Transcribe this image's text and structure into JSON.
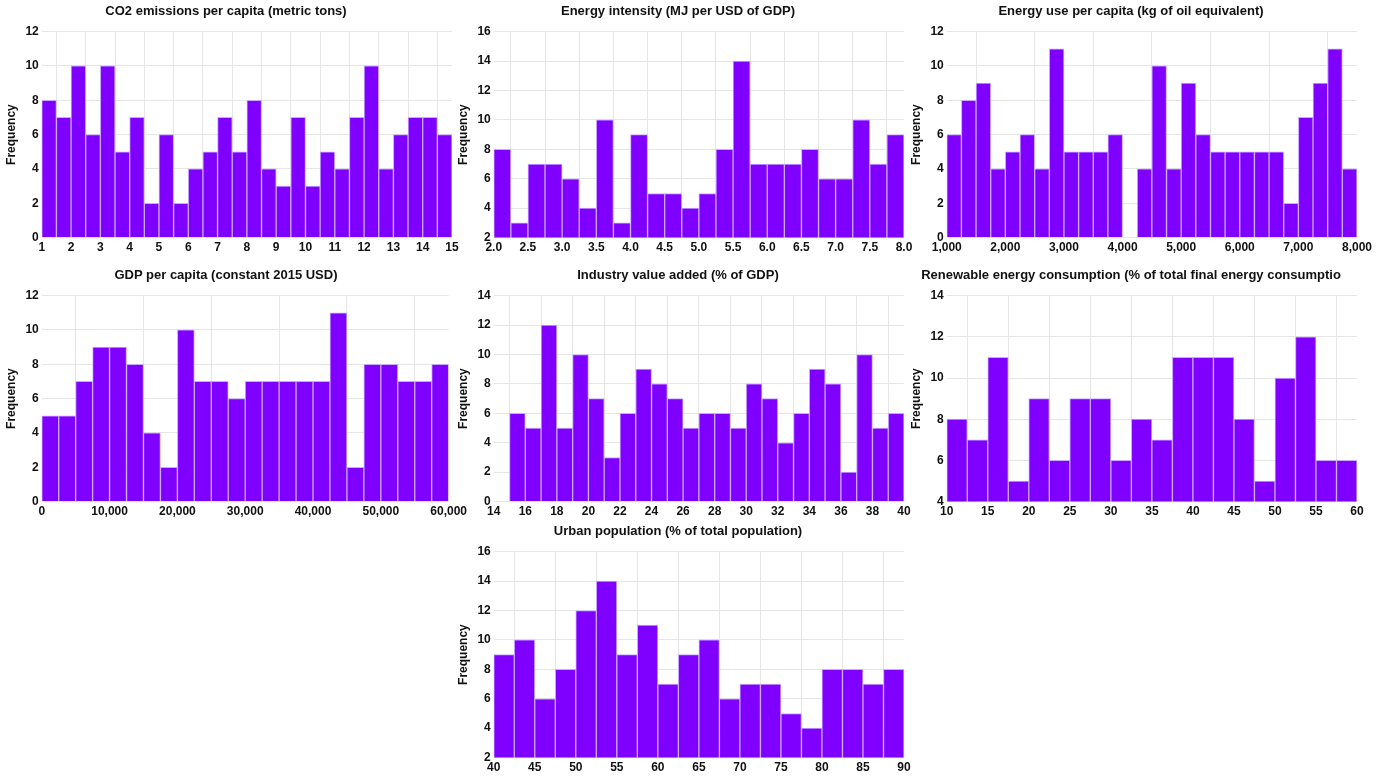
{
  "chart_data": [
    {
      "type": "histogram",
      "title": "CO2 emissions per capita (metric tons)",
      "ylabel": "Frequency",
      "color": "#7f00ff",
      "grid": true,
      "bins": [
        1,
        1.5,
        2,
        2.5,
        3,
        3.5,
        4,
        4.5,
        5,
        5.5,
        6,
        6.5,
        7,
        7.5,
        8,
        8.5,
        9,
        9.5,
        10,
        10.5,
        11,
        11.5,
        12,
        12.5,
        13,
        13.5,
        14,
        14.5,
        15
      ],
      "values": [
        8,
        7,
        10,
        6,
        10,
        5,
        7,
        2,
        6,
        2,
        4,
        5,
        7,
        5,
        8,
        4,
        3,
        7,
        3,
        5,
        4,
        7,
        10,
        4,
        6,
        7,
        7,
        6
      ],
      "xlim": [
        1,
        15
      ],
      "xticks": [
        1,
        2,
        3,
        4,
        5,
        6,
        7,
        8,
        9,
        10,
        11,
        12,
        13,
        14,
        15
      ],
      "ylim": [
        0,
        12
      ],
      "yticks": [
        0,
        2,
        4,
        6,
        8,
        10,
        12
      ]
    },
    {
      "type": "histogram",
      "title": "Energy intensity (MJ per USD of GDP)",
      "ylabel": "Frequency",
      "color": "#7f00ff",
      "grid": true,
      "bins": [
        2,
        2.25,
        2.5,
        2.75,
        3,
        3.25,
        3.5,
        3.75,
        4,
        4.25,
        4.5,
        4.75,
        5,
        5.25,
        5.5,
        5.75,
        6,
        6.25,
        6.5,
        6.75,
        7,
        7.25,
        7.5,
        7.75,
        8
      ],
      "values": [
        8,
        3,
        7,
        7,
        6,
        4,
        10,
        3,
        9,
        5,
        5,
        4,
        5,
        8,
        14,
        7,
        7,
        7,
        8,
        6,
        6,
        10,
        7,
        9
      ],
      "xlim": [
        2,
        8
      ],
      "xticks": [
        {
          "value": 2,
          "label": "2.0"
        },
        2.5,
        {
          "value": 3,
          "label": "3.0"
        },
        3.5,
        {
          "value": 4,
          "label": "4.0"
        },
        4.5,
        {
          "value": 5,
          "label": "5.0"
        },
        5.5,
        {
          "value": 6,
          "label": "6.0"
        },
        6.5,
        {
          "value": 7,
          "label": "7.0"
        },
        7.5,
        {
          "value": 8,
          "label": "8.0"
        }
      ],
      "ylim": [
        2,
        16
      ],
      "yticks": [
        2,
        4,
        6,
        8,
        10,
        12,
        14,
        16
      ]
    },
    {
      "type": "histogram",
      "title": "Energy use per capita (kg of oil equivalent)",
      "ylabel": "Frequency",
      "color": "#7f00ff",
      "grid": true,
      "bins": [
        1000,
        1250,
        1500,
        1750,
        2000,
        2250,
        2500,
        2750,
        3000,
        3250,
        3500,
        3750,
        4000,
        4250,
        4500,
        4750,
        5000,
        5250,
        5500,
        5750,
        6000,
        6250,
        6500,
        6750,
        7000,
        7250,
        7500,
        7750,
        8000
      ],
      "values": [
        6,
        8,
        9,
        4,
        5,
        6,
        4,
        11,
        5,
        5,
        5,
        6,
        0,
        4,
        10,
        4,
        9,
        6,
        5,
        5,
        5,
        5,
        5,
        2,
        7,
        9,
        11,
        4
      ],
      "xlim": [
        1000,
        8000
      ],
      "xticks": [
        {
          "value": 1000,
          "label": "1,000"
        },
        {
          "value": 2000,
          "label": "2,000"
        },
        {
          "value": 3000,
          "label": "3,000"
        },
        {
          "value": 4000,
          "label": "4,000"
        },
        {
          "value": 5000,
          "label": "5,000"
        },
        {
          "value": 6000,
          "label": "6,000"
        },
        {
          "value": 7000,
          "label": "7,000"
        },
        {
          "value": 8000,
          "label": "8,000"
        }
      ],
      "ylim": [
        0,
        12
      ],
      "yticks": [
        0,
        2,
        4,
        6,
        8,
        10,
        12
      ]
    },
    {
      "type": "histogram",
      "title": "GDP per capita (constant 2015 USD)",
      "ylabel": "Frequency",
      "color": "#7f00ff",
      "grid": true,
      "bins": [
        0,
        2500,
        5000,
        7500,
        10000,
        12500,
        15000,
        17500,
        20000,
        22500,
        25000,
        27500,
        30000,
        32500,
        35000,
        37500,
        40000,
        42500,
        45000,
        47500,
        50000,
        52500,
        55000,
        57500,
        60000
      ],
      "values": [
        5,
        5,
        7,
        9,
        9,
        8,
        4,
        2,
        10,
        7,
        7,
        6,
        7,
        7,
        7,
        7,
        7,
        11,
        2,
        8,
        8,
        7,
        7,
        8
      ],
      "xlim": [
        0,
        60000
      ],
      "xticks": [
        0,
        {
          "value": 10000,
          "label": "10,000"
        },
        {
          "value": 20000,
          "label": "20,000"
        },
        {
          "value": 30000,
          "label": "30,000"
        },
        {
          "value": 40000,
          "label": "40,000"
        },
        {
          "value": 50000,
          "label": "50,000"
        },
        {
          "value": 60000,
          "label": "60,000"
        }
      ],
      "ylim": [
        0,
        12
      ],
      "yticks": [
        0,
        2,
        4,
        6,
        8,
        10,
        12
      ]
    },
    {
      "type": "histogram",
      "title": "Industry value added (% of GDP)",
      "ylabel": "Frequency",
      "color": "#7f00ff",
      "grid": true,
      "bins": [
        15,
        16,
        17,
        18,
        19,
        20,
        21,
        22,
        23,
        24,
        25,
        26,
        27,
        28,
        29,
        30,
        31,
        32,
        33,
        34,
        35,
        36,
        37,
        38,
        39,
        40
      ],
      "values": [
        6,
        5,
        12,
        5,
        10,
        7,
        3,
        6,
        9,
        8,
        7,
        5,
        6,
        6,
        5,
        8,
        7,
        4,
        6,
        9,
        8,
        2,
        10,
        5,
        6
      ],
      "xlim": [
        14,
        40
      ],
      "xticks": [
        14,
        16,
        18,
        20,
        22,
        24,
        26,
        28,
        30,
        32,
        34,
        36,
        38,
        40
      ],
      "ylim": [
        0,
        14
      ],
      "yticks": [
        0,
        2,
        4,
        6,
        8,
        10,
        12,
        14
      ]
    },
    {
      "type": "histogram",
      "title": "Renewable energy consumption (% of total final energy consumptio",
      "ylabel": "Frequency",
      "color": "#7f00ff",
      "grid": true,
      "bins": [
        10,
        12.5,
        15,
        17.5,
        20,
        22.5,
        25,
        27.5,
        30,
        32.5,
        35,
        37.5,
        40,
        42.5,
        45,
        47.5,
        50,
        52.5,
        55,
        57.5,
        60
      ],
      "values": [
        8,
        7,
        11,
        5,
        9,
        6,
        9,
        9,
        6,
        8,
        7,
        11,
        11,
        11,
        8,
        5,
        10,
        12,
        6,
        6
      ],
      "xlim": [
        10,
        60
      ],
      "xticks": [
        10,
        15,
        20,
        25,
        30,
        35,
        40,
        45,
        50,
        55,
        60
      ],
      "ylim": [
        4,
        14
      ],
      "yticks": [
        4,
        6,
        8,
        10,
        12,
        14
      ]
    },
    {
      "type": "histogram",
      "title": "Urban population (% of total population)",
      "ylabel": "Frequency",
      "color": "#7f00ff",
      "grid": true,
      "bins": [
        40,
        42.5,
        45,
        47.5,
        50,
        52.5,
        55,
        57.5,
        60,
        62.5,
        65,
        67.5,
        70,
        72.5,
        75,
        77.5,
        80,
        82.5,
        85,
        87.5,
        90
      ],
      "values": [
        9,
        10,
        6,
        8,
        12,
        14,
        9,
        11,
        7,
        9,
        10,
        6,
        7,
        7,
        5,
        4,
        8,
        8,
        7,
        8
      ],
      "xlim": [
        40,
        90
      ],
      "xticks": [
        40,
        45,
        50,
        55,
        60,
        65,
        70,
        75,
        80,
        85,
        90
      ],
      "ylim": [
        2,
        16
      ],
      "yticks": [
        2,
        4,
        6,
        8,
        10,
        12,
        14,
        16
      ]
    }
  ]
}
